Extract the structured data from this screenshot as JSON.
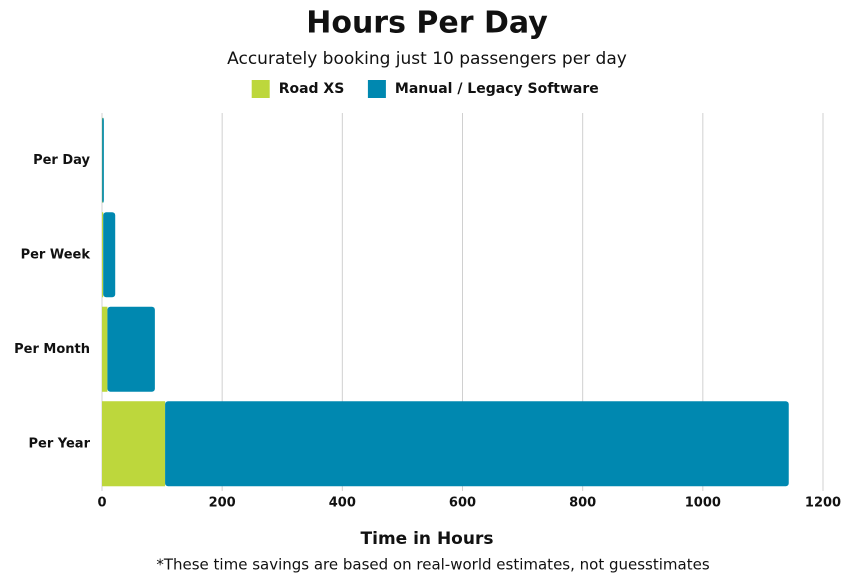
{
  "chart_data": {
    "type": "stacked-barh",
    "title": "Hours Per Day",
    "subtitle": "Accurately booking just 10 passengers per day",
    "categories": [
      "Per Day",
      "Per Week",
      "Per Month",
      "Per Year"
    ],
    "series": [
      {
        "name": "Road XS",
        "color": "#bdd73c",
        "values": [
          0.3,
          2,
          9,
          105
        ]
      },
      {
        "name": "Manual / Legacy Software",
        "color": "#0088b0",
        "values": [
          2.8,
          20,
          79,
          1038
        ]
      }
    ],
    "xlim": [
      0,
      1200
    ],
    "xticks": [
      0,
      200,
      400,
      600,
      800,
      1000,
      1200
    ],
    "x_label": "Time in Hours",
    "grid": true,
    "legend": "top",
    "note": "*These time savings are based on real-world estimates, not guesstimates"
  }
}
